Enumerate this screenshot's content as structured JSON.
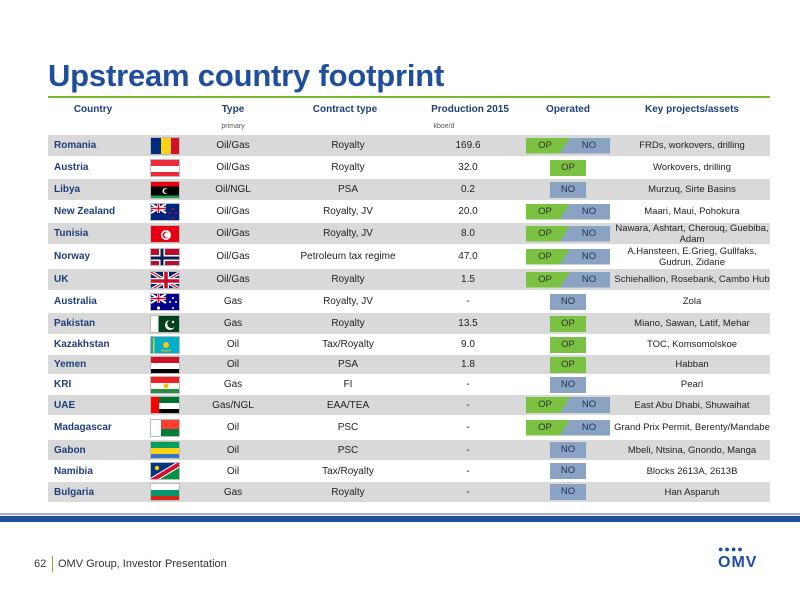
{
  "title": "Upstream country footprint",
  "headers": {
    "country": "Country",
    "type": "Type",
    "type_sub": "primary",
    "contract": "Contract type",
    "production": "Production 2015",
    "production_sub": "kboe/d",
    "operated": "Operated",
    "projects": "Key projects/assets"
  },
  "rows": [
    {
      "country": "Romania",
      "flag": "romania-flag-icon",
      "type": "Oil/Gas",
      "contract": "Royalty",
      "production": "169.6",
      "op": "OP",
      "no": "NO",
      "projects": "FRDs, workovers, drilling"
    },
    {
      "country": "Austria",
      "flag": "austria-flag-icon",
      "type": "Oil/Gas",
      "contract": "Royalty",
      "production": "32.0",
      "op": "OP",
      "no": "",
      "projects": "Workovers, drilling"
    },
    {
      "country": "Libya",
      "flag": "libya-flag-icon",
      "type": "Oil/NGL",
      "contract": "PSA",
      "production": "0.2",
      "op": "",
      "no": "NO",
      "projects": "Murzuq, Sirte Basins"
    },
    {
      "country": "New Zealand",
      "flag": "new-zealand-flag-icon",
      "type": "Oil/Gas",
      "contract": "Royalty, JV",
      "production": "20.0",
      "op": "OP",
      "no": "NO",
      "projects": "Maari, Maui, Pohokura"
    },
    {
      "country": "Tunisia",
      "flag": "tunisia-flag-icon",
      "type": "Oil/Gas",
      "contract": "Royalty, JV",
      "production": "8.0",
      "op": "OP",
      "no": "NO",
      "projects": "Nawara, Ashtart, Cherouq, Guebiba, Adam"
    },
    {
      "country": "Norway",
      "flag": "norway-flag-icon",
      "type": "Oil/Gas",
      "contract": "Petroleum tax regime",
      "production": "47.0",
      "op": "OP",
      "no": "NO",
      "projects": "A.Hansteen, E.Grieg, Gullfaks, Gudrun, Zidane"
    },
    {
      "country": "UK",
      "flag": "uk-flag-icon",
      "type": "Oil/Gas",
      "contract": "Royalty",
      "production": "1.5",
      "op": "OP",
      "no": "NO",
      "projects": "Schiehallion, Rosebank, Cambo Hub"
    },
    {
      "country": "Australia",
      "flag": "australia-flag-icon",
      "type": "Gas",
      "contract": "Royalty, JV",
      "production": "-",
      "op": "",
      "no": "NO",
      "projects": "Zola"
    },
    {
      "country": "Pakistan",
      "flag": "pakistan-flag-icon",
      "type": "Gas",
      "contract": "Royalty",
      "production": "13.5",
      "op": "OP",
      "no": "",
      "projects": "Miano, Sawan, Latif, Mehar"
    },
    {
      "country": "Kazakhstan",
      "flag": "kazakhstan-flag-icon",
      "type": "Oil",
      "contract": "Tax/Royalty",
      "production": "9.0",
      "op": "OP",
      "no": "",
      "projects": "TOC, Komsomolskoe"
    },
    {
      "country": "Yemen",
      "flag": "yemen-flag-icon",
      "type": "Oil",
      "contract": "PSA",
      "production": "1.8",
      "op": "OP",
      "no": "",
      "projects": "Habban"
    },
    {
      "country": "KRI",
      "flag": "kri-flag-icon",
      "type": "Gas",
      "contract": "FI",
      "production": "-",
      "op": "",
      "no": "NO",
      "projects": "Pearl"
    },
    {
      "country": "UAE",
      "flag": "uae-flag-icon",
      "type": "Gas/NGL",
      "contract": "EAA/TEA",
      "production": "-",
      "op": "OP",
      "no": "NO",
      "projects": "East Abu Dhabi, Shuwaihat"
    },
    {
      "country": "Madagascar",
      "flag": "madagascar-flag-icon",
      "type": "Oil",
      "contract": "PSC",
      "production": "-",
      "op": "OP",
      "no": "NO",
      "projects": "Grand Prix Permit, Berenty/Mandabe"
    },
    {
      "country": "Gabon",
      "flag": "gabon-flag-icon",
      "type": "Oil",
      "contract": "PSC",
      "production": "-",
      "op": "",
      "no": "NO",
      "projects": "Mbeli, Ntsina, Gnondo, Manga"
    },
    {
      "country": "Namibia",
      "flag": "namibia-flag-icon",
      "type": "Oil",
      "contract": "Tax/Royalty",
      "production": "-",
      "op": "",
      "no": "NO",
      "projects": "Blocks 2613A, 2613B"
    },
    {
      "country": "Bulgaria",
      "flag": "bulgaria-flag-icon",
      "type": "Gas",
      "contract": "Royalty",
      "production": "-",
      "op": "",
      "no": "NO",
      "projects": "Han Asparuh"
    }
  ],
  "colors": {
    "accent_blue": "#1f4e9c",
    "accent_green": "#7cb82f",
    "op_green": "#7cc242",
    "no_blue": "#8aa3c3"
  },
  "footer": {
    "page": "62",
    "text": "OMV Group, Investor Presentation",
    "logo_dots": "●●●●",
    "logo": "OMV"
  }
}
